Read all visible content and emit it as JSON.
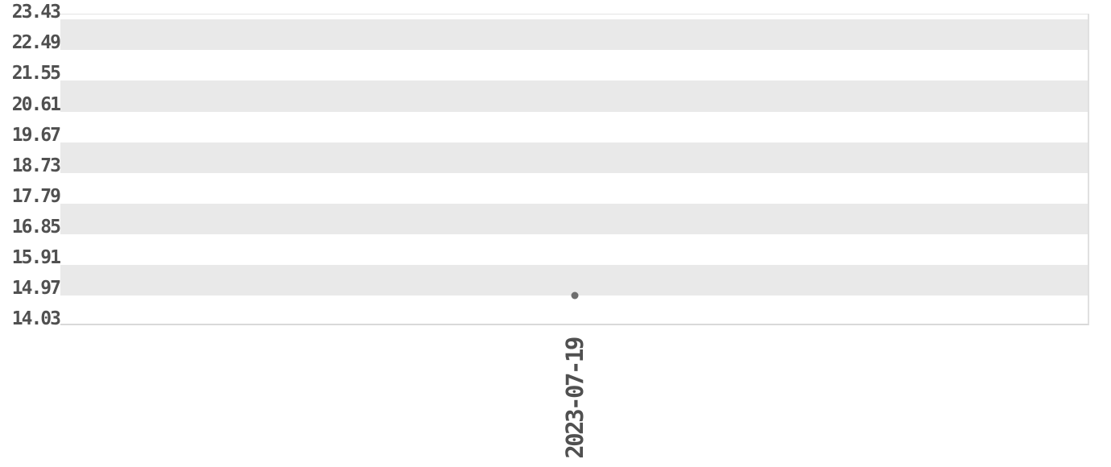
{
  "chart_data": {
    "type": "scatter",
    "title": "",
    "xlabel": "",
    "ylabel": "",
    "x_tick_labels": [
      "2023-07-19"
    ],
    "y_tick_labels": [
      "23.43",
      "22.49",
      "21.55",
      "20.61",
      "19.67",
      "18.73",
      "17.79",
      "16.85",
      "15.91",
      "14.97",
      "14.03"
    ],
    "y_tick_values": [
      23.43,
      22.49,
      21.55,
      20.61,
      19.67,
      18.73,
      17.79,
      16.85,
      15.91,
      14.97,
      14.03
    ],
    "ylim": [
      14.03,
      23.59
    ],
    "tick_step": 0.94,
    "grid": "alternating-horizontal-stripes",
    "legend": "none",
    "series": [
      {
        "name": "series-1",
        "points": [
          {
            "x": "2023-07-19",
            "y": 14.96
          }
        ]
      }
    ],
    "colors": {
      "background": "#ffffff",
      "stripe_band": "#e9e9e9",
      "marker": "#6e6e6e",
      "tick_text": "#505050",
      "axis_line": "#d9d9d9"
    }
  }
}
